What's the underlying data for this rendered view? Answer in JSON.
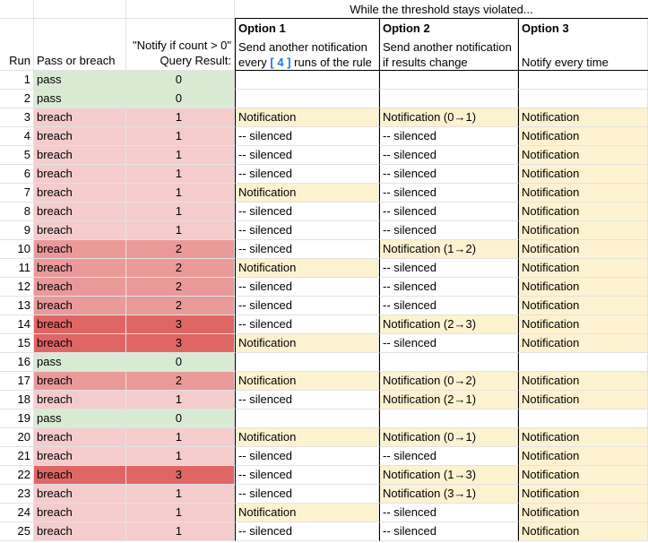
{
  "banner": "While the threshold stays violated...",
  "headers": {
    "run": "Run",
    "pass_or_breach": "Pass or breach",
    "query_line1": "\"Notify if count > 0\"",
    "query_line2": "Query Result:",
    "option1_title": "Option 1",
    "option1_line1": "Send another notification",
    "option1_line2_pre": "every",
    "option1_line2_num": "[ 4 ]",
    "option1_line2_post": "runs of the rule",
    "option2_title": "Option 2",
    "option2_line1": "Send another notification",
    "option2_line2": "if results change",
    "option3_title": "Option 3",
    "option3_line2": "Notify every time"
  },
  "colors": {
    "pass_bg": "#d9ead3",
    "breach1_bg": "#f4cccc",
    "breach2_bg": "#ea9999",
    "breach3_bg": "#e06666",
    "notify_bg": "#fdf2d0"
  },
  "rows": [
    {
      "run": "1",
      "status": "pass",
      "count": "0",
      "opt1": "",
      "opt2": "",
      "opt3": ""
    },
    {
      "run": "2",
      "status": "pass",
      "count": "0",
      "opt1": "",
      "opt2": "",
      "opt3": ""
    },
    {
      "run": "3",
      "status": "breach",
      "count": "1",
      "opt1": "Notification",
      "opt2": "Notification (0→1)",
      "opt3": "Notification"
    },
    {
      "run": "4",
      "status": "breach",
      "count": "1",
      "opt1": "-- silenced",
      "opt2": "-- silenced",
      "opt3": "Notification"
    },
    {
      "run": "5",
      "status": "breach",
      "count": "1",
      "opt1": "-- silenced",
      "opt2": "-- silenced",
      "opt3": "Notification"
    },
    {
      "run": "6",
      "status": "breach",
      "count": "1",
      "opt1": "-- silenced",
      "opt2": "-- silenced",
      "opt3": "Notification"
    },
    {
      "run": "7",
      "status": "breach",
      "count": "1",
      "opt1": "Notification",
      "opt2": "-- silenced",
      "opt3": "Notification"
    },
    {
      "run": "8",
      "status": "breach",
      "count": "1",
      "opt1": "-- silenced",
      "opt2": "-- silenced",
      "opt3": "Notification"
    },
    {
      "run": "9",
      "status": "breach",
      "count": "1",
      "opt1": "-- silenced",
      "opt2": "-- silenced",
      "opt3": "Notification"
    },
    {
      "run": "10",
      "status": "breach",
      "count": "2",
      "opt1": "-- silenced",
      "opt2": "Notification (1→2)",
      "opt3": "Notification"
    },
    {
      "run": "11",
      "status": "breach",
      "count": "2",
      "opt1": "Notification",
      "opt2": "-- silenced",
      "opt3": "Notification"
    },
    {
      "run": "12",
      "status": "breach",
      "count": "2",
      "opt1": "-- silenced",
      "opt2": "-- silenced",
      "opt3": "Notification"
    },
    {
      "run": "13",
      "status": "breach",
      "count": "2",
      "opt1": "-- silenced",
      "opt2": "-- silenced",
      "opt3": "Notification"
    },
    {
      "run": "14",
      "status": "breach",
      "count": "3",
      "opt1": "-- silenced",
      "opt2": "Notification (2→3)",
      "opt3": "Notification"
    },
    {
      "run": "15",
      "status": "breach",
      "count": "3",
      "opt1": "Notification",
      "opt2": "-- silenced",
      "opt3": "Notification"
    },
    {
      "run": "16",
      "status": "pass",
      "count": "0",
      "opt1": "",
      "opt2": "",
      "opt3": ""
    },
    {
      "run": "17",
      "status": "breach",
      "count": "2",
      "opt1": "Notification",
      "opt2": "Notification  (0→2)",
      "opt3": "Notification"
    },
    {
      "run": "18",
      "status": "breach",
      "count": "1",
      "opt1": "-- silenced",
      "opt2": "Notification  (2→1)",
      "opt3": "Notification"
    },
    {
      "run": "19",
      "status": "pass",
      "count": "0",
      "opt1": "",
      "opt2": "",
      "opt3": ""
    },
    {
      "run": "20",
      "status": "breach",
      "count": "1",
      "opt1": "Notification",
      "opt2": "Notification (0→1)",
      "opt3": "Notification"
    },
    {
      "run": "21",
      "status": "breach",
      "count": "1",
      "opt1": "-- silenced",
      "opt2": "-- silenced",
      "opt3": "Notification"
    },
    {
      "run": "22",
      "status": "breach",
      "count": "3",
      "opt1": "-- silenced",
      "opt2": "Notification (1→3)",
      "opt3": "Notification"
    },
    {
      "run": "23",
      "status": "breach",
      "count": "1",
      "opt1": "-- silenced",
      "opt2": "Notification (3→1)",
      "opt3": "Notification"
    },
    {
      "run": "24",
      "status": "breach",
      "count": "1",
      "opt1": "Notification",
      "opt2": "-- silenced",
      "opt3": "Notification"
    },
    {
      "run": "25",
      "status": "breach",
      "count": "1",
      "opt1": "-- silenced",
      "opt2": "-- silenced",
      "opt3": "Notification"
    }
  ]
}
